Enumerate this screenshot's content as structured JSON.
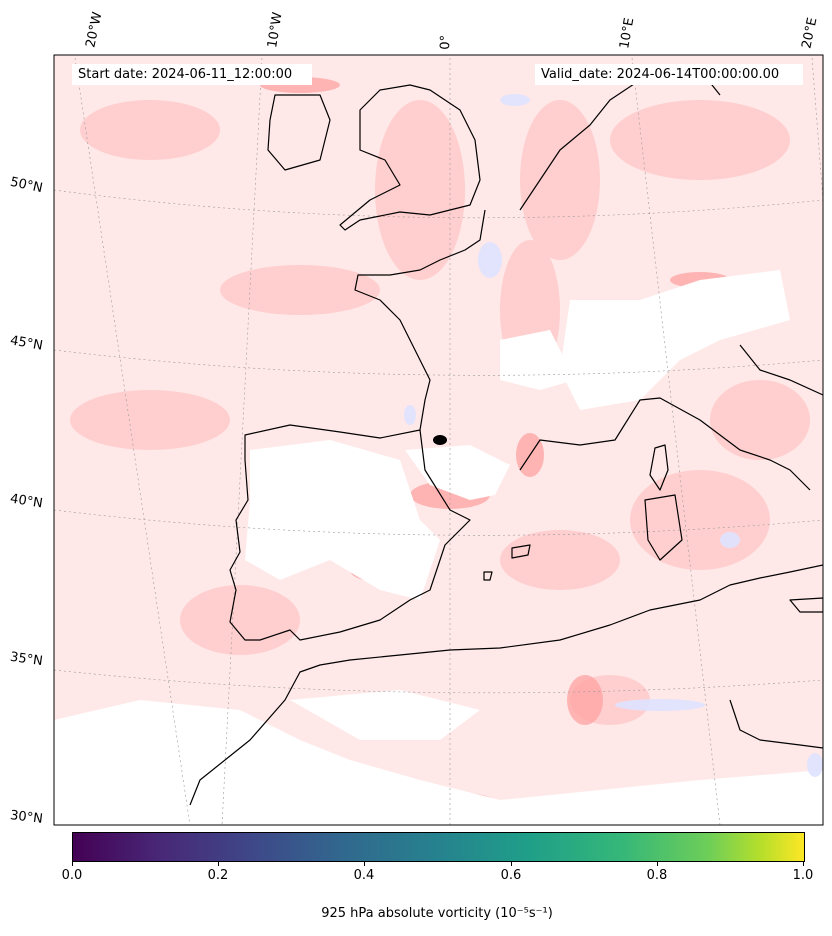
{
  "map": {
    "start_label": "Start date: 2024-06-11_12:00:00",
    "valid_label": "Valid_date: 2024-06-14T00:00:00.00",
    "lon_labels": [
      "20°W",
      "10°W",
      "0°",
      "10°E",
      "20°E"
    ],
    "lat_labels": [
      "50°N",
      "45°N",
      "40°N",
      "35°N",
      "30°N"
    ],
    "colors": {
      "positive_shading": "#ffd6d6",
      "strong_positive": "#ff9a9a",
      "negative_shading": "#d9dcff",
      "coastline": "#000000"
    }
  },
  "colorbar": {
    "ticks": [
      "0.0",
      "0.2",
      "0.4",
      "0.6",
      "0.8",
      "1.0"
    ],
    "label": "925 hPa absolute vorticity (10⁻⁵s⁻¹)",
    "colormap": "viridis"
  }
}
